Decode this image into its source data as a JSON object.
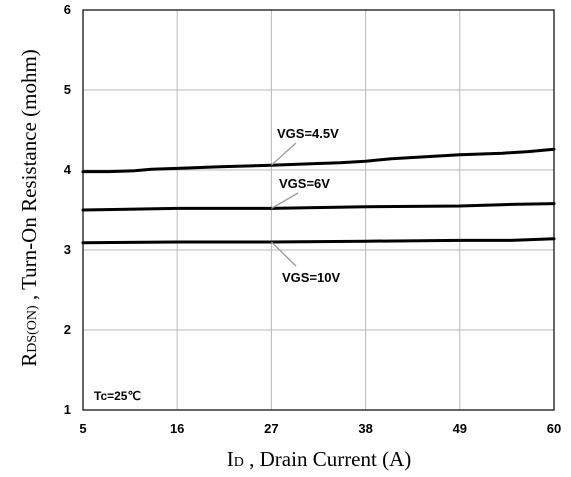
{
  "chart_data": {
    "type": "line",
    "xlabel": {
      "main": "I",
      "sub": "D",
      "rest": " , Drain Current (A)"
    },
    "ylabel": {
      "main": "R",
      "sub": "DS(ON)",
      "rest": " , Turn-On Resistance (mohm)"
    },
    "xlim": [
      5,
      60
    ],
    "ylim": [
      1,
      6
    ],
    "x_ticks": [
      5,
      16,
      27,
      38,
      49,
      60
    ],
    "y_ticks": [
      1,
      2,
      3,
      4,
      5,
      6
    ],
    "grid": true,
    "annotation": "Tc=25℃",
    "series": [
      {
        "name": "VGS=4.5V",
        "x": [
          5,
          8,
          11,
          13,
          16,
          21,
          27,
          32,
          35,
          38,
          41,
          44,
          49,
          54,
          57,
          60
        ],
        "y": [
          3.98,
          3.98,
          3.99,
          4.01,
          4.02,
          4.04,
          4.06,
          4.08,
          4.09,
          4.11,
          4.14,
          4.16,
          4.19,
          4.21,
          4.23,
          4.26
        ]
      },
      {
        "name": "VGS=6V",
        "x": [
          5,
          16,
          27,
          38,
          49,
          55,
          60
        ],
        "y": [
          3.5,
          3.52,
          3.52,
          3.54,
          3.55,
          3.57,
          3.58
        ]
      },
      {
        "name": "VGS=10V",
        "x": [
          5,
          16,
          27,
          38,
          49,
          55,
          60
        ],
        "y": [
          3.09,
          3.1,
          3.1,
          3.11,
          3.12,
          3.12,
          3.14
        ]
      }
    ]
  }
}
